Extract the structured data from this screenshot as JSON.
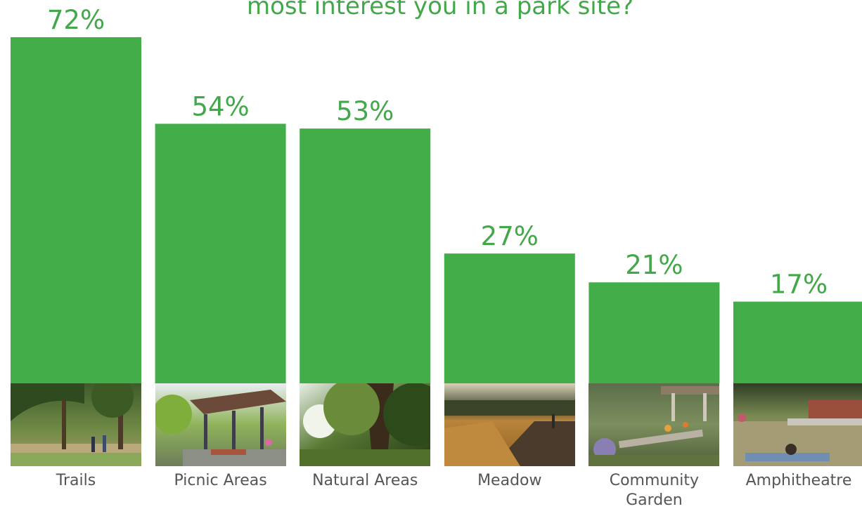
{
  "colors": {
    "bar": "#43ad49",
    "label": "#43a84a",
    "category": "#555555"
  },
  "chart_data": {
    "type": "bar",
    "title": "most interest you in a park site?",
    "categories": [
      "Trails",
      "Picnic Areas",
      "Natural Areas",
      "Meadow",
      "Community Garden",
      "Amphitheatre"
    ],
    "category_lines": [
      [
        "Trails"
      ],
      [
        "Picnic Areas"
      ],
      [
        "Natural Areas"
      ],
      [
        "Meadow"
      ],
      [
        "Community",
        "Garden"
      ],
      [
        "Amphitheatre"
      ]
    ],
    "values": [
      72,
      54,
      53,
      27,
      21,
      17
    ],
    "value_labels": [
      "72%",
      "54%",
      "53%",
      "27%",
      "21%",
      "17%"
    ],
    "ylim": [
      0,
      72
    ],
    "grid": false,
    "legend": "none",
    "photos": [
      "trails-photo",
      "picnic-areas-photo",
      "natural-areas-photo",
      "meadow-photo",
      "community-garden-photo",
      "amphitheatre-photo"
    ]
  }
}
